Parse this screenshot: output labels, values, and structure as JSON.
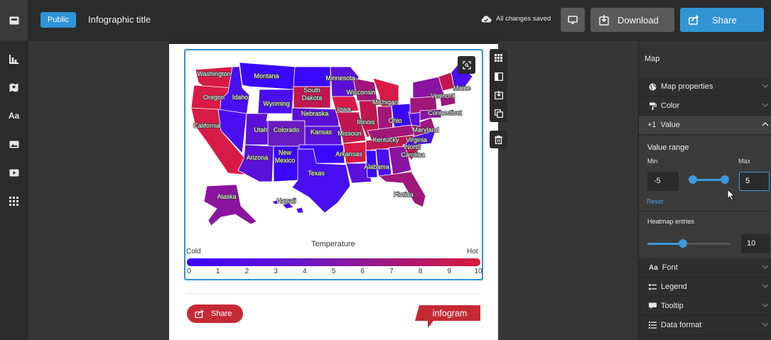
{
  "topbar": {
    "visibility_badge": "Public",
    "title": "Infographic title",
    "save_status": "All changes saved",
    "download_label": "Download",
    "share_label": "Share"
  },
  "left_sidebar": {
    "items": [
      {
        "name": "chart",
        "icon": "bar-chart-icon"
      },
      {
        "name": "map",
        "icon": "map-icon"
      },
      {
        "name": "text",
        "icon": "text-icon",
        "label": "Aa"
      },
      {
        "name": "image",
        "icon": "image-icon"
      },
      {
        "name": "video",
        "icon": "video-icon"
      },
      {
        "name": "more",
        "icon": "grid-icon"
      }
    ]
  },
  "map": {
    "states": [
      {
        "label": "Washington"
      },
      {
        "label": "Montana"
      },
      {
        "label": "Minnesota"
      },
      {
        "label": "Oregon"
      },
      {
        "label": "Idaho"
      },
      {
        "label": "South Dakota"
      },
      {
        "label": "Wisconsin"
      },
      {
        "label": "Vermont"
      },
      {
        "label": "Maine"
      },
      {
        "label": "Wyoming"
      },
      {
        "label": "Michigan"
      },
      {
        "label": "Iowa"
      },
      {
        "label": "Nebraska"
      },
      {
        "label": "Connecticut"
      },
      {
        "label": "California"
      },
      {
        "label": "Illinois"
      },
      {
        "label": "Ohio"
      },
      {
        "label": "Utah"
      },
      {
        "label": "Colorado"
      },
      {
        "label": "Kansas"
      },
      {
        "label": "Missouri"
      },
      {
        "label": "Maryland"
      },
      {
        "label": "Kentucky"
      },
      {
        "label": "Virginia"
      },
      {
        "label": "Arizona"
      },
      {
        "label": "New Mexico"
      },
      {
        "label": "Arkansas"
      },
      {
        "label": "North Carolina"
      },
      {
        "label": "Alabama"
      },
      {
        "label": "Texas"
      },
      {
        "label": "Florida"
      },
      {
        "label": "Alaska"
      },
      {
        "label": "Hawaii"
      }
    ],
    "legend": {
      "title": "Temperature",
      "min_label": "Cold",
      "max_label": "Hot",
      "ticks": [
        "0",
        "1",
        "2",
        "3",
        "4",
        "5",
        "6",
        "7",
        "8",
        "9",
        "10"
      ],
      "color_low": "#3b00ff",
      "color_high": "#d81b3c"
    }
  },
  "page_footer": {
    "share_label": "Share",
    "logo_text": "infogram"
  },
  "right_panel": {
    "title": "Map",
    "sections": [
      {
        "label": "Map properties",
        "icon": "globe-icon"
      },
      {
        "label": "Color",
        "icon": "paint-icon"
      },
      {
        "label": "Value",
        "icon": "plus-one-icon",
        "open": true
      },
      {
        "label": "Font",
        "icon": "font-icon"
      },
      {
        "label": "Legend",
        "icon": "legend-icon"
      },
      {
        "label": "Tooltip",
        "icon": "tooltip-icon"
      },
      {
        "label": "Data format",
        "icon": "data-format-icon"
      }
    ],
    "value": {
      "icon_text": "+1",
      "range_label": "Value range",
      "min_label": "Min",
      "max_label": "Max",
      "min_value": "-5",
      "max_value": "5",
      "reset_label": "Reset",
      "heatmap_label": "Heatmap entries",
      "heatmap_value": "10",
      "accent": "#3e99dc"
    }
  }
}
